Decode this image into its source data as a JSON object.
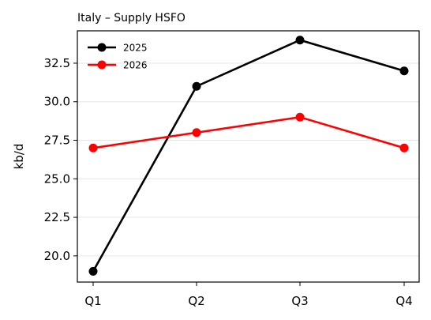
{
  "chart_data": {
    "type": "line",
    "title": "Italy – Supply HSFO",
    "xlabel": "",
    "ylabel": "kb/d",
    "categories": [
      "Q1",
      "Q2",
      "Q3",
      "Q4"
    ],
    "ylim": [
      18.3,
      34.6
    ],
    "yticks": [
      20.0,
      22.5,
      25.0,
      27.5,
      30.0,
      32.5
    ],
    "ytick_labels": [
      "20.0",
      "22.5",
      "25.0",
      "27.5",
      "30.0",
      "32.5"
    ],
    "grid": "horizontal",
    "legend_position": "top-left",
    "series": [
      {
        "name": "2025",
        "color": "#000000",
        "values": [
          19,
          31,
          34,
          32
        ]
      },
      {
        "name": "2026",
        "color": "#ff0000",
        "values": [
          27,
          28,
          29,
          27
        ]
      }
    ]
  }
}
